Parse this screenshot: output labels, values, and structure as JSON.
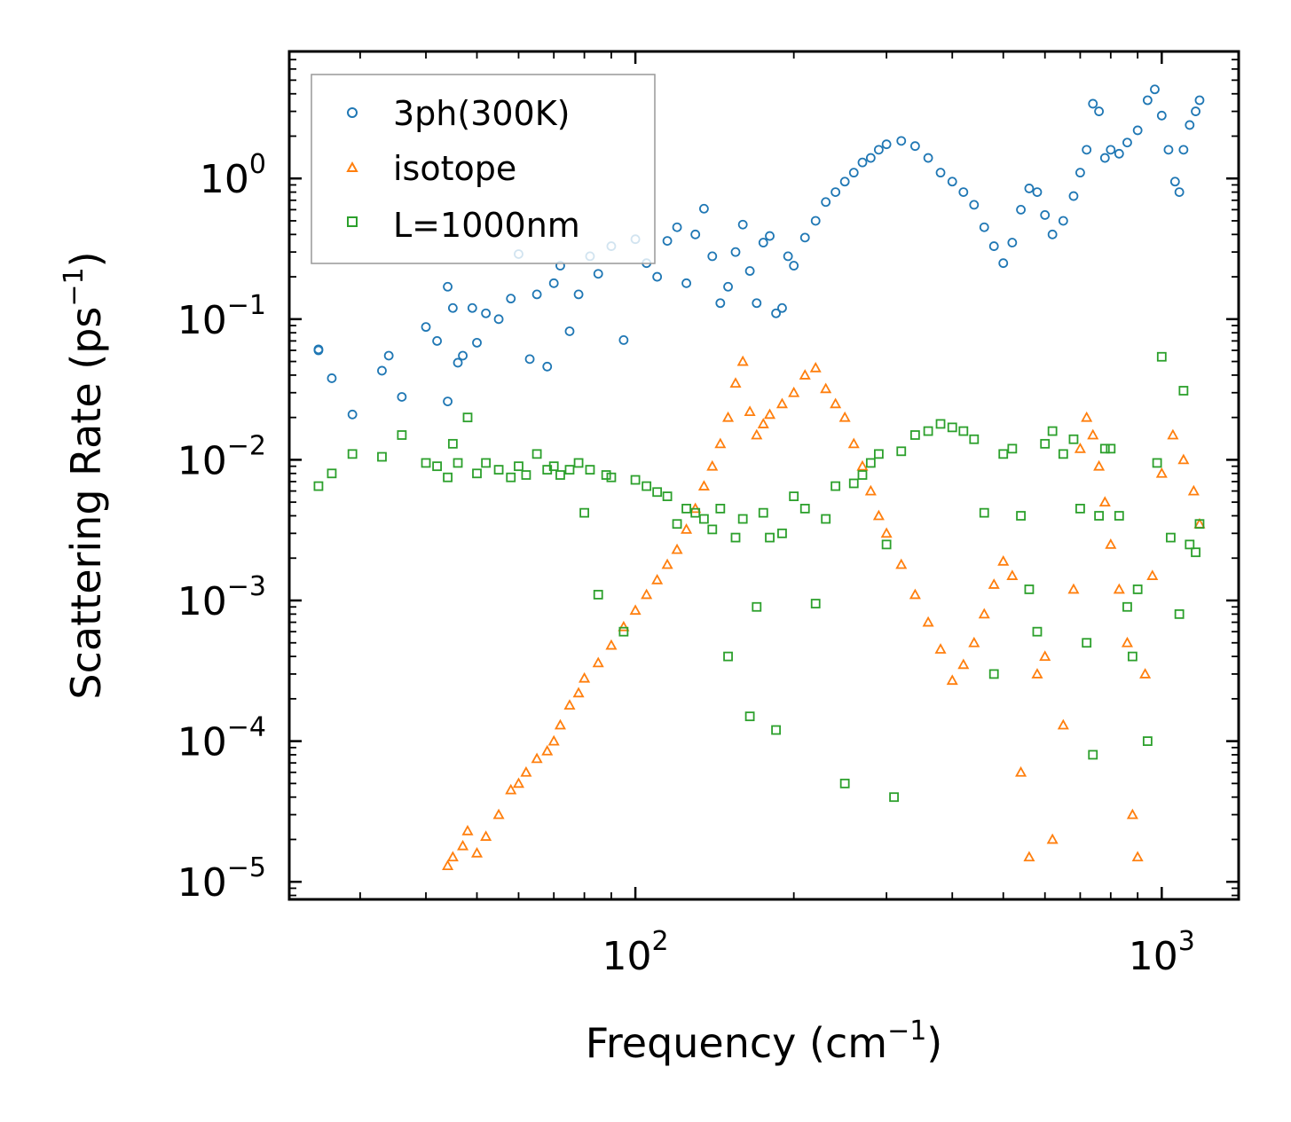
{
  "chart_data": {
    "type": "scatter",
    "title": "",
    "xlabel": {
      "text": "Frequency (cm",
      "sup": "−1",
      "close": ")"
    },
    "ylabel": {
      "text": "Scattering Rate (ps",
      "sup": "−1",
      "close": ")"
    },
    "xscale": "log",
    "yscale": "log",
    "xlim": [
      22,
      1400
    ],
    "ylim": [
      7.5e-06,
      8
    ],
    "xticks": [
      {
        "value": 100,
        "base": "10",
        "exp": "2"
      },
      {
        "value": 1000,
        "base": "10",
        "exp": "3"
      }
    ],
    "yticks": [
      {
        "value": 1,
        "base": "10",
        "exp": "0"
      },
      {
        "value": 0.1,
        "base": "10",
        "exp": "−1"
      },
      {
        "value": 0.01,
        "base": "10",
        "exp": "−2"
      },
      {
        "value": 0.001,
        "base": "10",
        "exp": "−3"
      },
      {
        "value": 0.0001,
        "base": "10",
        "exp": "−4"
      },
      {
        "value": 1e-05,
        "base": "10",
        "exp": "−5"
      }
    ],
    "legend_position": "top-left",
    "series": [
      {
        "name": "3ph(300K)",
        "marker": "circle",
        "color": "#1f77b4",
        "x": [
          25,
          25,
          26.5,
          29,
          33,
          34,
          36,
          40,
          42,
          44,
          44,
          45,
          46,
          47,
          49,
          50,
          52,
          55,
          58,
          60,
          63,
          65,
          68,
          70,
          72,
          75,
          78,
          82,
          85,
          90,
          95,
          100,
          105,
          110,
          115,
          120,
          125,
          130,
          135,
          140,
          145,
          150,
          155,
          160,
          165,
          170,
          175,
          180,
          185,
          190,
          195,
          200,
          210,
          220,
          230,
          240,
          250,
          260,
          270,
          280,
          290,
          300,
          320,
          340,
          360,
          380,
          400,
          420,
          440,
          460,
          480,
          500,
          520,
          540,
          560,
          580,
          600,
          620,
          650,
          680,
          700,
          720,
          740,
          760,
          780,
          800,
          830,
          860,
          900,
          940,
          970,
          1000,
          1030,
          1060,
          1080,
          1100,
          1130,
          1160,
          1180
        ],
        "y": [
          0.06,
          0.061,
          0.038,
          0.021,
          0.043,
          0.055,
          0.028,
          0.088,
          0.07,
          0.17,
          0.026,
          0.12,
          0.049,
          0.055,
          0.12,
          0.068,
          0.11,
          0.1,
          0.14,
          0.29,
          0.052,
          0.15,
          0.046,
          0.18,
          0.24,
          0.082,
          0.15,
          0.28,
          0.21,
          0.33,
          0.071,
          0.37,
          0.25,
          0.2,
          0.36,
          0.45,
          0.18,
          0.4,
          0.61,
          0.28,
          0.13,
          0.17,
          0.3,
          0.47,
          0.22,
          0.13,
          0.35,
          0.39,
          0.11,
          0.12,
          0.28,
          0.24,
          0.38,
          0.5,
          0.68,
          0.8,
          0.95,
          1.1,
          1.3,
          1.4,
          1.6,
          1.75,
          1.85,
          1.7,
          1.4,
          1.1,
          0.95,
          0.8,
          0.65,
          0.45,
          0.33,
          0.25,
          0.35,
          0.6,
          0.85,
          0.8,
          0.55,
          0.4,
          0.5,
          0.75,
          1.1,
          1.6,
          3.4,
          3.0,
          1.4,
          1.6,
          1.5,
          1.8,
          2.2,
          3.6,
          4.3,
          2.8,
          1.6,
          0.95,
          0.8,
          1.6,
          2.4,
          3.0,
          3.6
        ]
      },
      {
        "name": "isotope",
        "marker": "triangle",
        "color": "#ff7f0e",
        "x": [
          44,
          45,
          47,
          48,
          50,
          52,
          55,
          58,
          60,
          62,
          65,
          68,
          70,
          72,
          75,
          78,
          80,
          85,
          90,
          95,
          100,
          105,
          110,
          115,
          120,
          125,
          130,
          135,
          140,
          145,
          150,
          155,
          160,
          165,
          170,
          175,
          180,
          190,
          200,
          210,
          220,
          230,
          240,
          250,
          260,
          270,
          280,
          290,
          300,
          320,
          340,
          360,
          380,
          400,
          420,
          440,
          460,
          480,
          500,
          520,
          540,
          560,
          580,
          600,
          620,
          650,
          680,
          700,
          720,
          740,
          760,
          780,
          800,
          830,
          860,
          880,
          900,
          930,
          960,
          1000,
          1050,
          1100,
          1150,
          1180
        ],
        "y": [
          1.3e-05,
          1.5e-05,
          1.8e-05,
          2.3e-05,
          1.6e-05,
          2.1e-05,
          3e-05,
          4.5e-05,
          5e-05,
          6e-05,
          7.5e-05,
          8.5e-05,
          0.0001,
          0.00013,
          0.00018,
          0.00022,
          0.00028,
          0.00036,
          0.00048,
          0.00065,
          0.00085,
          0.0011,
          0.0014,
          0.0018,
          0.0023,
          0.0032,
          0.0045,
          0.0065,
          0.009,
          0.013,
          0.02,
          0.035,
          0.05,
          0.022,
          0.015,
          0.018,
          0.021,
          0.025,
          0.03,
          0.04,
          0.045,
          0.032,
          0.025,
          0.02,
          0.013,
          0.009,
          0.006,
          0.004,
          0.003,
          0.0018,
          0.0011,
          0.0007,
          0.00045,
          0.00027,
          0.00035,
          0.0005,
          0.0008,
          0.0013,
          0.0019,
          0.0015,
          6e-05,
          1.5e-05,
          0.0003,
          0.0004,
          2e-05,
          0.00013,
          0.0012,
          0.012,
          0.02,
          0.015,
          0.009,
          0.005,
          0.0025,
          0.0012,
          0.0005,
          3e-05,
          1.5e-05,
          0.0003,
          0.0015,
          0.008,
          0.015,
          0.01,
          0.006,
          0.0035
        ]
      },
      {
        "name": "L=1000nm",
        "marker": "square",
        "color": "#2ca02c",
        "x": [
          25,
          26.5,
          29,
          33,
          36,
          40,
          42,
          44,
          45,
          46,
          48,
          50,
          52,
          55,
          58,
          60,
          62,
          65,
          68,
          70,
          72,
          75,
          78,
          80,
          82,
          85,
          88,
          90,
          95,
          100,
          105,
          110,
          115,
          120,
          125,
          130,
          135,
          140,
          145,
          150,
          155,
          160,
          165,
          170,
          175,
          180,
          185,
          190,
          200,
          210,
          220,
          230,
          240,
          250,
          260,
          270,
          280,
          290,
          300,
          310,
          320,
          340,
          360,
          380,
          400,
          420,
          440,
          460,
          480,
          500,
          520,
          540,
          560,
          580,
          600,
          620,
          650,
          680,
          700,
          720,
          740,
          760,
          780,
          800,
          830,
          860,
          880,
          900,
          940,
          980,
          1000,
          1040,
          1080,
          1100,
          1130,
          1160,
          1180
        ],
        "y": [
          0.0065,
          0.008,
          0.011,
          0.0105,
          0.015,
          0.0095,
          0.009,
          0.0075,
          0.013,
          0.0095,
          0.02,
          0.008,
          0.0095,
          0.0085,
          0.0075,
          0.009,
          0.0078,
          0.011,
          0.0085,
          0.009,
          0.0078,
          0.0085,
          0.0095,
          0.0042,
          0.0085,
          0.0011,
          0.0078,
          0.0075,
          0.0006,
          0.0072,
          0.0065,
          0.0059,
          0.0055,
          0.0035,
          0.0045,
          0.0042,
          0.0038,
          0.0032,
          0.0045,
          0.0004,
          0.0028,
          0.0038,
          0.00015,
          0.0009,
          0.0042,
          0.0028,
          0.00012,
          0.003,
          0.0055,
          0.0045,
          0.00095,
          0.0038,
          0.0065,
          5e-05,
          0.0068,
          0.0078,
          0.0095,
          0.011,
          0.0025,
          4e-05,
          0.0115,
          0.015,
          0.016,
          0.018,
          0.017,
          0.016,
          0.014,
          0.0042,
          0.0003,
          0.011,
          0.012,
          0.004,
          0.0012,
          0.0006,
          0.013,
          0.016,
          0.011,
          0.014,
          0.0045,
          0.0005,
          8e-05,
          0.004,
          0.012,
          0.012,
          0.004,
          0.0009,
          0.0004,
          0.0012,
          0.0001,
          0.0095,
          0.054,
          0.0028,
          0.0008,
          0.031,
          0.0025,
          0.0022,
          0.0035
        ]
      }
    ]
  }
}
